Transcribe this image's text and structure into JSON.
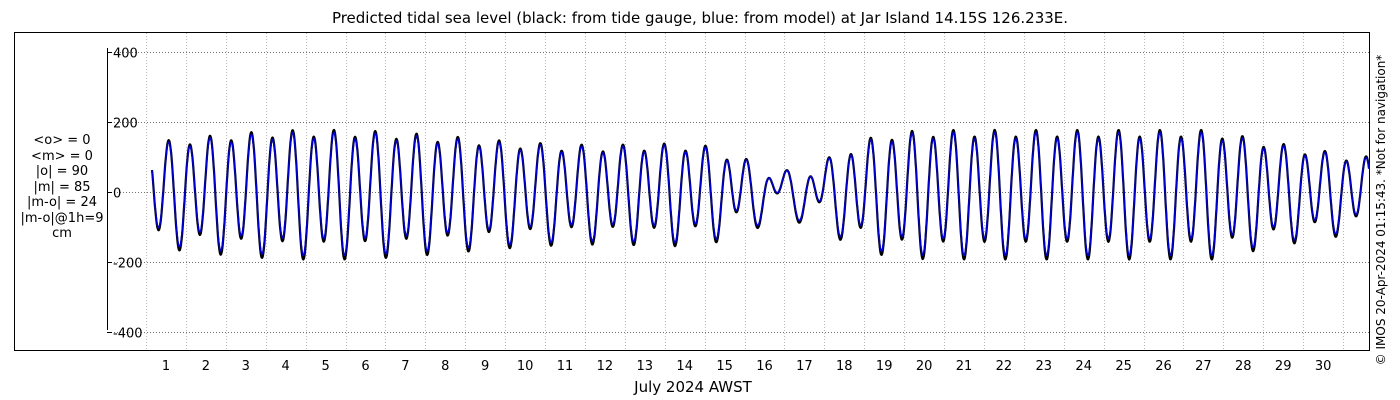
{
  "chart_data": {
    "type": "line",
    "title": "Predicted tidal sea level (black: from tide gauge, blue: from model) at Jar Island 14.15S 126.233E.",
    "xlabel": "July 2024 AWST",
    "ylabel": "",
    "xlim": [
      0.6,
      31.9
    ],
    "ylim": [
      -450,
      460
    ],
    "yticks": [
      400,
      200,
      0,
      -200,
      -400
    ],
    "ytick_labels": [
      "400",
      "200",
      "0",
      "-200",
      "-400"
    ],
    "xticks": [
      1,
      2,
      3,
      4,
      5,
      6,
      7,
      8,
      9,
      10,
      11,
      12,
      13,
      14,
      15,
      16,
      17,
      18,
      19,
      20,
      21,
      22,
      23,
      24,
      25,
      26,
      27,
      28,
      29,
      30
    ],
    "xtick_labels": [
      "1",
      "2",
      "3",
      "4",
      "5",
      "6",
      "7",
      "8",
      "9",
      "10",
      "11",
      "12",
      "13",
      "14",
      "15",
      "16",
      "17",
      "18",
      "19",
      "20",
      "21",
      "22",
      "23",
      "24",
      "25",
      "26",
      "27",
      "28",
      "29",
      "30"
    ],
    "grid": true,
    "series": [
      {
        "color": "#000000",
        "tide_model": {
          "days_start": 0.6,
          "days_end": 31.9,
          "semidiurnal_amp": 90,
          "diurnal_amp": 25,
          "ratio": 1.0,
          "spring_days": [
            4.8,
            19.2
          ],
          "neap_days": [
            16.6
          ],
          "period_hours": 12.42
        }
      },
      {
        "color": "#0000cc",
        "tide_model": {
          "days_start": 0.6,
          "days_end": 31.9,
          "semidiurnal_amp": 90,
          "diurnal_amp": 25,
          "ratio": 0.95,
          "spring_days": [
            4.8,
            19.2
          ],
          "neap_days": [
            16.6
          ],
          "period_hours": 12.42
        }
      }
    ]
  },
  "stats": {
    "mean_obs": "<o> = 0",
    "mean_model": "<m> = 0",
    "abs_obs": "|o| = 90",
    "abs_model": "|m| = 85",
    "abs_diff": "|m-o| = 24",
    "abs_diff_1h": "|m-o|@1h=9",
    "unit": "cm"
  },
  "watermark": "© IMOS 20-Apr-2024 01:15:43. *Not for navigation*"
}
